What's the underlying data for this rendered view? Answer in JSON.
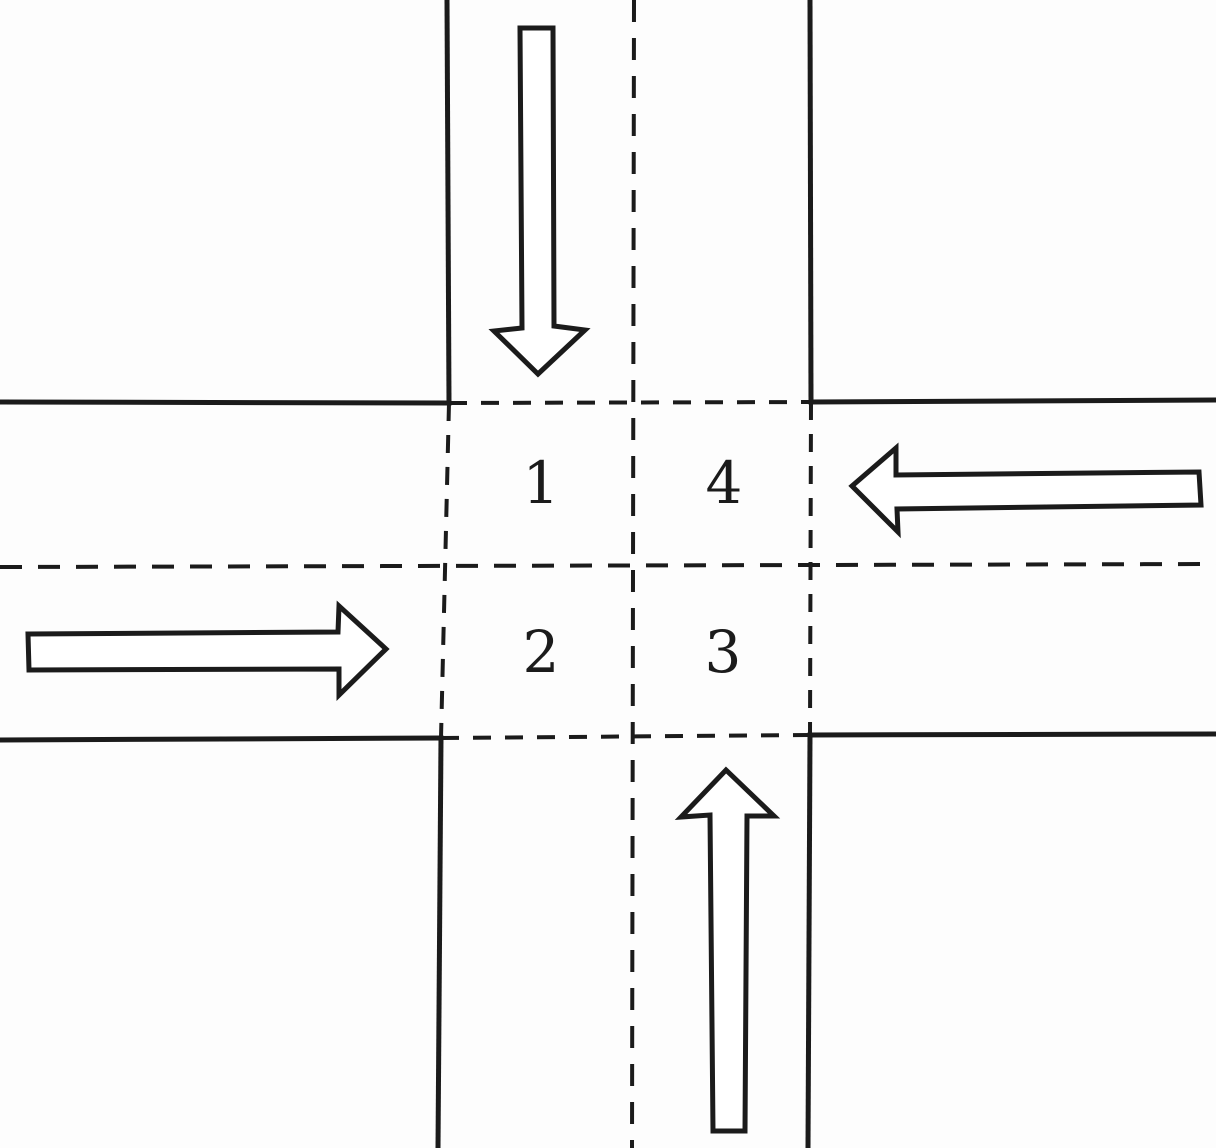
{
  "diagram": {
    "zones": [
      {
        "id": "1",
        "label": "1"
      },
      {
        "id": "2",
        "label": "2"
      },
      {
        "id": "3",
        "label": "3"
      },
      {
        "id": "4",
        "label": "4"
      }
    ],
    "arrows": [
      {
        "name": "arrow-southbound",
        "direction": "down"
      },
      {
        "name": "arrow-westbound",
        "direction": "left"
      },
      {
        "name": "arrow-eastbound",
        "direction": "right"
      },
      {
        "name": "arrow-northbound",
        "direction": "up"
      }
    ],
    "colors": {
      "line": "#1b1b1b",
      "background": "#fdfdfd"
    }
  }
}
